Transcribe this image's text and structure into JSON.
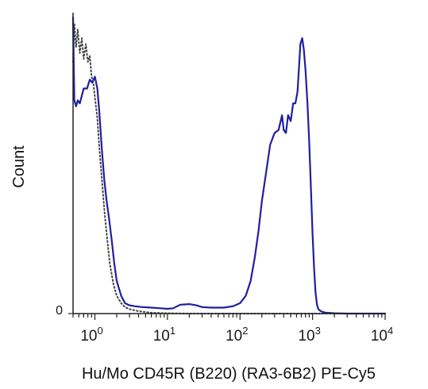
{
  "chart_data": {
    "type": "line",
    "title": "",
    "xlabel": "Hu/Mo CD45R (B220) (RA3-6B2) PE-Cy5",
    "ylabel": "Count",
    "x_scale": "log",
    "xlim": [
      0.5,
      10000
    ],
    "ylim": [
      0,
      100
    ],
    "x_ticks": [
      {
        "value": 1,
        "base": "10",
        "exp": "0"
      },
      {
        "value": 10,
        "base": "10",
        "exp": "1"
      },
      {
        "value": 100,
        "base": "10",
        "exp": "2"
      },
      {
        "value": 1000,
        "base": "10",
        "exp": "3"
      },
      {
        "value": 10000,
        "base": "10",
        "exp": "4"
      }
    ],
    "y_ticks": [
      {
        "value": 0,
        "label": "0"
      }
    ],
    "grid": false,
    "legend": "none",
    "series": [
      {
        "style": "solid",
        "color": "#1f1fa0",
        "x": [
          0.5,
          0.52,
          0.55,
          0.58,
          0.62,
          0.7,
          0.78,
          0.85,
          0.92,
          1.0,
          1.08,
          1.15,
          1.25,
          1.35,
          1.45,
          1.55,
          1.7,
          1.85,
          2.0,
          2.3,
          2.6,
          3.0,
          3.5,
          4.5,
          6,
          8,
          10,
          12,
          15,
          20,
          25,
          30,
          40,
          60,
          80,
          100,
          120,
          140,
          160,
          180,
          200,
          230,
          260,
          300,
          340,
          380,
          400,
          430,
          460,
          500,
          540,
          580,
          620,
          680,
          720,
          760,
          800,
          850,
          900,
          950,
          1000,
          1050,
          1100,
          1150,
          1200,
          1300,
          1500,
          2000,
          3000,
          5000,
          10000
        ],
        "y": [
          100,
          72,
          70,
          72,
          71,
          76,
          76,
          79,
          78,
          80,
          76,
          68,
          55,
          45,
          38,
          33,
          25,
          17,
          11,
          6,
          3.5,
          2.8,
          2.5,
          2.2,
          2.0,
          1.8,
          1.6,
          1.8,
          3.0,
          3.2,
          2.8,
          2.2,
          2.0,
          2.0,
          2.5,
          3.5,
          6,
          11,
          19,
          28,
          38,
          48,
          57,
          61,
          62,
          67,
          62,
          61,
          67,
          65,
          71,
          71,
          75,
          91,
          93,
          89,
          82,
          71,
          58,
          42,
          27,
          15,
          7,
          3,
          1.5,
          0.8,
          0.3,
          0.1,
          0,
          0,
          0
        ]
      },
      {
        "style": "dotted",
        "color": "#444444",
        "x": [
          0.5,
          0.52,
          0.55,
          0.58,
          0.62,
          0.66,
          0.7,
          0.75,
          0.8,
          0.85,
          0.9,
          0.95,
          1.0,
          1.08,
          1.15,
          1.25,
          1.35,
          1.45,
          1.6,
          1.8,
          2.0,
          2.3,
          2.6,
          3.0,
          4.0,
          6,
          10,
          20,
          50,
          100,
          1000,
          10000
        ],
        "y": [
          85,
          98,
          90,
          96,
          88,
          93,
          86,
          91,
          85,
          87,
          80,
          78,
          73,
          66,
          56,
          45,
          35,
          27,
          17,
          10,
          6,
          3.5,
          2.2,
          1.5,
          0.8,
          0.3,
          0.1,
          0,
          0,
          0,
          0,
          0
        ]
      }
    ]
  }
}
